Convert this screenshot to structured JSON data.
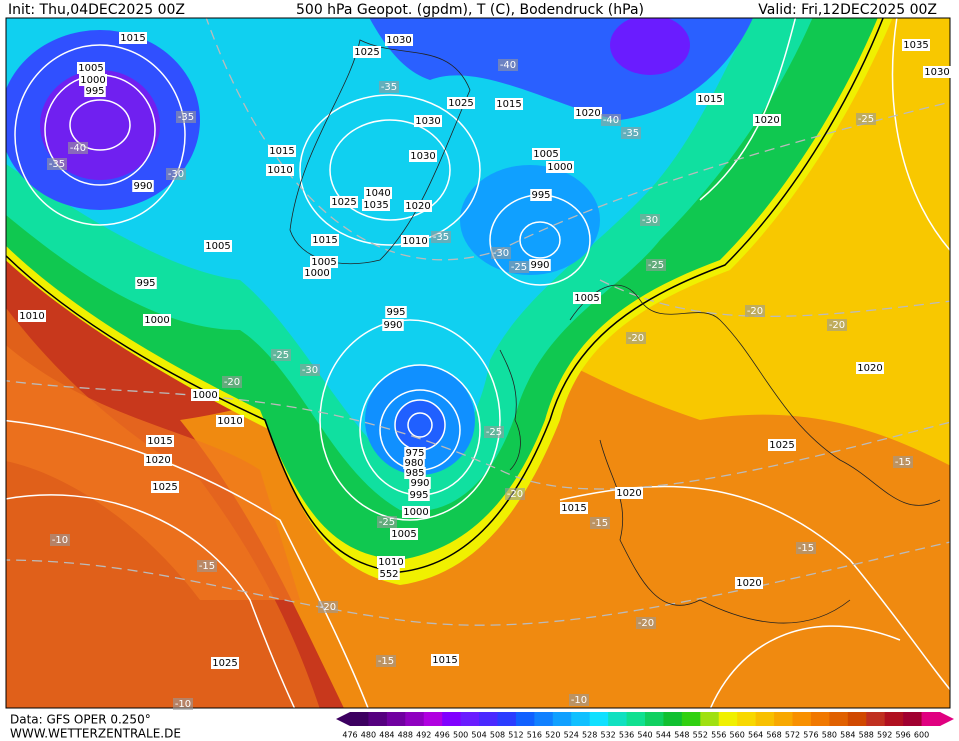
{
  "header": {
    "init": "Init: Thu,04DEC2025 00Z",
    "title": "500 hPa Geopot. (gpdm), T (C), Bodendruck (hPa)",
    "valid": "Valid: Fri,12DEC2025 00Z"
  },
  "footer": {
    "data": "Data: GFS OPER 0.250°",
    "site": "WWW.WETTERZENTRALE.DE"
  },
  "map": {
    "pressure_labels": [
      "1015",
      "1025",
      "1030",
      "1005",
      "1000",
      "995",
      "1025",
      "1015",
      "1020",
      "1015",
      "1020",
      "1035",
      "1030",
      "1030",
      "1030",
      "1015",
      "1010",
      "1005",
      "1000",
      "990",
      "1040",
      "1035",
      "1025",
      "1020",
      "995",
      "1015",
      "1010",
      "1005",
      "1000",
      "990",
      "995",
      "1005",
      "1010",
      "1000",
      "995",
      "990",
      "1000",
      "1010",
      "1015",
      "1020",
      "1025",
      "975",
      "980",
      "985",
      "990",
      "995",
      "1000",
      "1005",
      "1010",
      "552",
      "1020",
      "1015",
      "1020",
      "1025",
      "1020",
      "1025",
      "1015",
      "1005",
      "1015"
    ],
    "temperature_labels": [
      "-35",
      "-40",
      "-35",
      "-30",
      "-35",
      "-40",
      "-40",
      "-35",
      "-25",
      "-30",
      "-35",
      "-30",
      "-25",
      "-25",
      "-20",
      "-20",
      "-20",
      "-25",
      "-30",
      "-20",
      "-25",
      "-20",
      "-25",
      "-15",
      "-10",
      "-15",
      "-20",
      "-15",
      "-15",
      "-20",
      "-15",
      "-10",
      "-10"
    ]
  },
  "colorbar": {
    "labels": [
      476,
      480,
      484,
      488,
      492,
      496,
      500,
      504,
      508,
      512,
      516,
      520,
      524,
      528,
      532,
      536,
      540,
      544,
      548,
      552,
      556,
      560,
      564,
      568,
      572,
      576,
      580,
      584,
      588,
      592,
      596,
      600
    ],
    "colors": [
      "#3c0060",
      "#55007f",
      "#7000a0",
      "#8f00c0",
      "#b000e0",
      "#8000ff",
      "#6a1cff",
      "#4a28ff",
      "#2a3cff",
      "#1060ff",
      "#1080ff",
      "#10a0ff",
      "#10c0ff",
      "#10e0ff",
      "#10e0c0",
      "#10e090",
      "#10d060",
      "#10c030",
      "#30d010",
      "#a0e010",
      "#f0f000",
      "#f8d800",
      "#f8c000",
      "#f8a800",
      "#f89000",
      "#f07800",
      "#e06000",
      "#d04800",
      "#c03020",
      "#b01020",
      "#a00030",
      "#e00080"
    ]
  }
}
